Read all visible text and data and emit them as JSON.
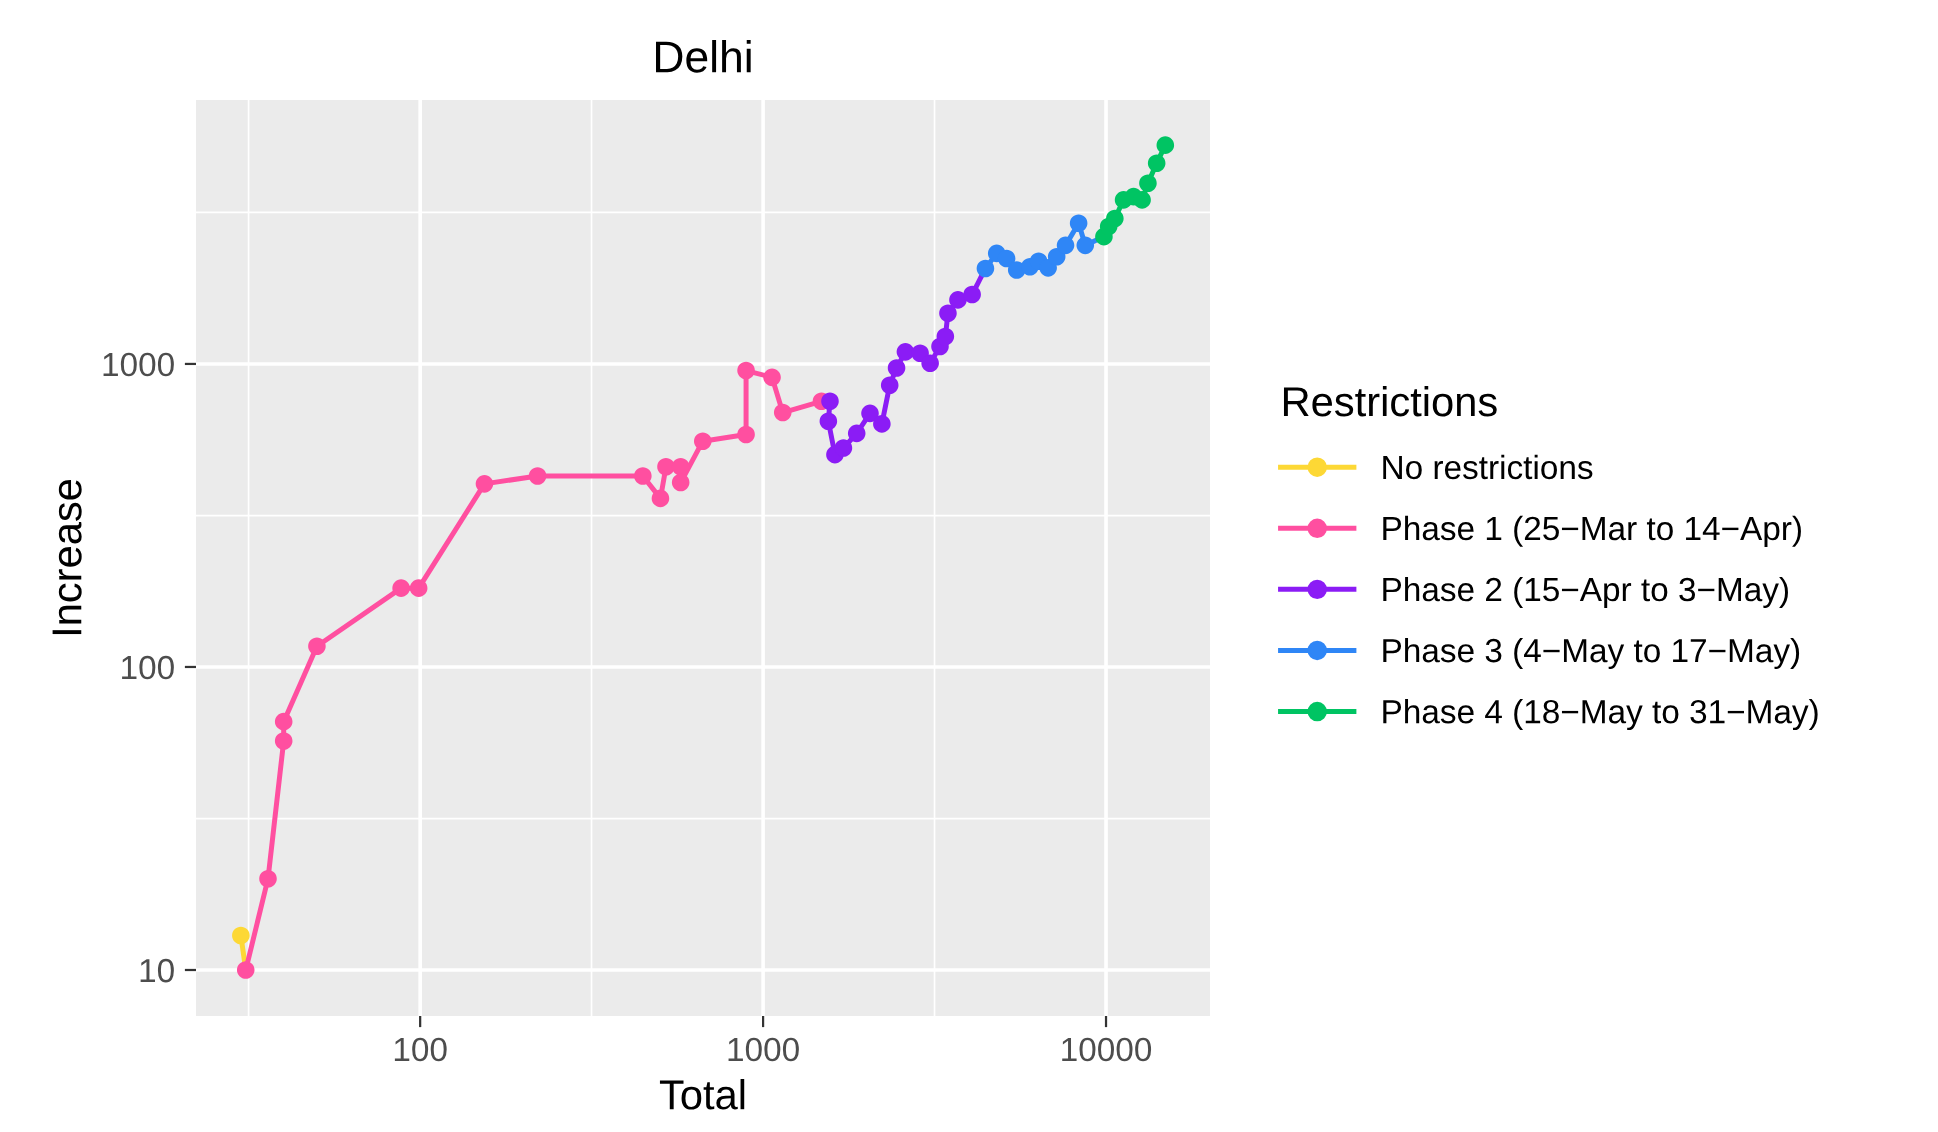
{
  "chart_data": {
    "type": "line",
    "title": "Delhi",
    "xlabel": "Total",
    "ylabel": "Increase",
    "legend_title": "Restrictions",
    "log": "xy",
    "grid": true,
    "legend": "right",
    "marker": "circle",
    "line_style": "solid",
    "xlim": [
      22.2,
      20100
    ],
    "ylim": [
      7.05,
      7430
    ],
    "xticks": [
      {
        "value": 31.6,
        "label": null
      },
      100,
      {
        "value": 316,
        "label": null
      },
      1000,
      {
        "value": 3162,
        "label": null
      },
      10000
    ],
    "yticks": [
      10,
      {
        "value": 31.6,
        "label": null
      },
      100,
      {
        "value": 316,
        "label": null
      },
      1000,
      {
        "value": 3162,
        "label": null
      }
    ],
    "series": [
      {
        "name": "No restrictions",
        "color": "#fdd835",
        "x": [
          30
        ],
        "values": [
          13
        ]
      },
      {
        "name": "Phase 1 (25−Mar to 14−Apr)",
        "color": "#ff4fa0",
        "x": [
          31,
          36,
          40,
          40,
          50,
          88,
          99,
          154,
          220,
          446,
          502,
          521,
          575,
          575,
          667,
          892,
          892,
          1062,
          1141,
          1480
        ],
        "values": [
          10,
          20,
          57,
          66,
          117,
          182,
          182,
          402,
          427,
          427,
          360,
          458,
          458,
          406,
          556,
          585,
          951,
          903,
          691,
          753
        ]
      },
      {
        "name": "Phase 2 (15−Apr to 3−May)",
        "color": "#8b1cf5",
        "x": [
          1567,
          1550,
          1620,
          1715,
          1875,
          2050,
          2220,
          2340,
          2450,
          2600,
          2870,
          3070,
          3280,
          3400,
          3460,
          3700,
          4070
        ],
        "values": [
          753,
          647,
          502,
          528,
          590,
          687,
          634,
          850,
          970,
          1096,
          1084,
          1005,
          1141,
          1231,
          1469,
          1627,
          1694
        ]
      },
      {
        "name": "Phase 3 (4−May to 17−May)",
        "color": "#2f86f6",
        "x": [
          4450,
          4800,
          5130,
          5490,
          6000,
          6360,
          6780,
          7180,
          7620,
          8320,
          8700
        ],
        "values": [
          2066,
          2317,
          2228,
          2042,
          2094,
          2181,
          2075,
          2259,
          2462,
          2911,
          2462
        ]
      },
      {
        "name": "Phase 4 (18−May to 31−May)",
        "color": "#00c463",
        "x": [
          9860,
          10180,
          10610,
          11250,
          12030,
          12740,
          13250,
          14050,
          14890
        ],
        "values": [
          2631,
          2840,
          3020,
          3478,
          3566,
          3478,
          3945,
          4592,
          5272
        ]
      }
    ]
  }
}
